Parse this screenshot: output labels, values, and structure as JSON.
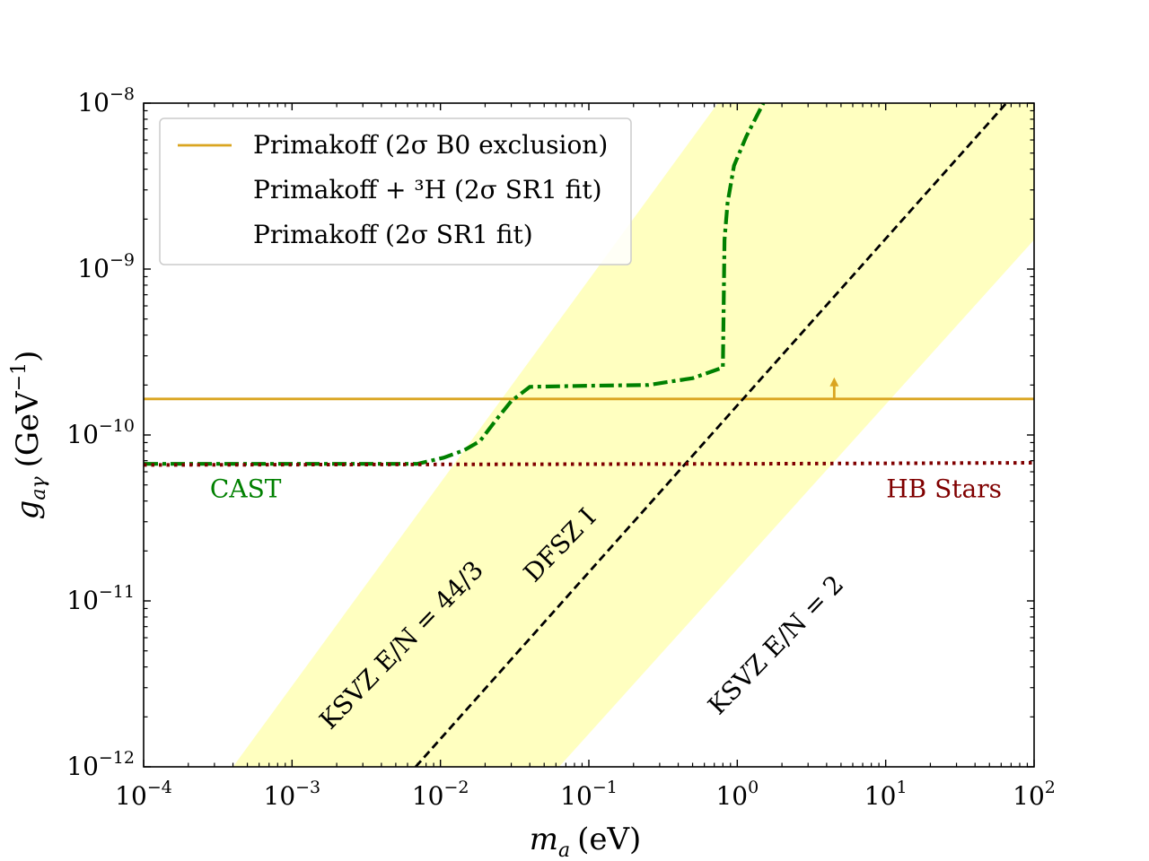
{
  "chart_data": {
    "type": "line",
    "title": "",
    "xlabel": {
      "var": "m",
      "sub": "a",
      "unit": "(eV)"
    },
    "ylabel": {
      "var": "g",
      "sub": "aγ",
      "unit_pre": "(GeV",
      "unit_exp": "−1",
      "unit_post": ")"
    },
    "xscale": "log",
    "yscale": "log",
    "xlim": [
      0.0001,
      100
    ],
    "ylim": [
      1e-12,
      1e-08
    ],
    "x_ticks": [
      {
        "value": 0.0001,
        "base": "10",
        "exp": "−4"
      },
      {
        "value": 0.001,
        "base": "10",
        "exp": "−3"
      },
      {
        "value": 0.01,
        "base": "10",
        "exp": "−2"
      },
      {
        "value": 0.1,
        "base": "10",
        "exp": "−1"
      },
      {
        "value": 1,
        "base": "10",
        "exp": "0"
      },
      {
        "value": 10,
        "base": "10",
        "exp": "1"
      },
      {
        "value": 100,
        "base": "10",
        "exp": "2"
      }
    ],
    "y_ticks": [
      {
        "value": 1e-12,
        "base": "10",
        "exp": "−12"
      },
      {
        "value": 1e-11,
        "base": "10",
        "exp": "−11"
      },
      {
        "value": 1e-10,
        "base": "10",
        "exp": "−10"
      },
      {
        "value": 1e-09,
        "base": "10",
        "exp": "−9"
      },
      {
        "value": 1e-08,
        "base": "10",
        "exp": "−8"
      }
    ],
    "grid": false,
    "legend_placement": "top-left",
    "legend": [
      {
        "label": "Primakoff (2σ B0 exclusion)",
        "color": "#DAA520",
        "style": "solid"
      },
      {
        "label": "Primakoff + ³H (2σ SR1 fit)",
        "color": "",
        "style": "none"
      },
      {
        "label": "Primakoff (2σ SR1 fit)",
        "color": "",
        "style": "none"
      }
    ],
    "bands": [
      {
        "name": "KSVZ E/N = 44/3",
        "color": "#FFFFC0",
        "lower_name": "KSVZ E/N = 2",
        "lower": [
          [
            0.0004,
            1e-12
          ],
          [
            100,
            1.5e-09
          ]
        ],
        "upper": [
          [
            0.0004,
            1e-12
          ],
          [
            0.74,
            1e-08
          ]
        ],
        "upper_edge": [
          [
            0.0004,
            1e-12
          ],
          [
            0.74,
            1e-08
          ]
        ],
        "lower_edge": [
          [
            0.063,
            1e-12
          ],
          [
            100,
            1.5e-09
          ]
        ]
      }
    ],
    "series": [
      {
        "key": "primakoff_b0",
        "color": "#DAA520",
        "style": "solid",
        "x": [
          0.0001,
          100
        ],
        "y": [
          1.65e-10,
          1.65e-10
        ]
      },
      {
        "key": "dfsz",
        "color": "#000000",
        "style": "dashed",
        "x": [
          0.0068,
          65
        ],
        "y": [
          1e-12,
          1e-08
        ]
      },
      {
        "key": "cast",
        "color": "#008000",
        "style": "dashdot",
        "x": [
          0.0001,
          0.001,
          0.007,
          0.0105,
          0.0145,
          0.0185,
          0.024,
          0.03,
          0.04,
          0.1,
          0.25,
          0.5,
          0.8,
          0.82,
          0.86,
          0.95,
          1.15,
          1.5
        ],
        "y": [
          6.7e-11,
          6.7e-11,
          6.7e-11,
          7.3e-11,
          8.1e-11,
          9.2e-11,
          1.25e-10,
          1.6e-10,
          1.95e-10,
          1.98e-10,
          2e-10,
          2.2e-10,
          2.55e-10,
          1.5e-09,
          2.5e-09,
          4.2e-09,
          6.3e-09,
          1e-08
        ]
      },
      {
        "key": "hb_stars",
        "color": "#800000",
        "style": "dotted",
        "x": [
          0.0001,
          0.01,
          1,
          100
        ],
        "y": [
          6.6e-11,
          6.65e-11,
          6.7e-11,
          6.8e-11
        ]
      }
    ],
    "annotations": [
      {
        "key": "cast_label",
        "text": "CAST",
        "color": "#008000",
        "x": 0.00028,
        "y": 4.2e-11,
        "rotate": 0
      },
      {
        "key": "hb_label",
        "text": "HB Stars",
        "color": "#800000",
        "x": 0.5,
        "y": 4.2e-11,
        "rotate": 0
      },
      {
        "key": "ksvz443_label",
        "text": "KSVZ E/N = 44/3",
        "color": "#000000",
        "x": 0.006,
        "y": 5e-12,
        "rotate": -46
      },
      {
        "key": "dfsz_label",
        "text": "DFSZ I",
        "color": "#000000",
        "x": 0.07,
        "y": 2e-11,
        "rotate": -46
      },
      {
        "key": "ksvz2_label",
        "text": "KSVZ E/N = 2",
        "color": "#000000",
        "x": 2.0,
        "y": 5e-12,
        "rotate": -46
      }
    ],
    "arrow": {
      "color": "#DAA520",
      "x": 4.5,
      "y_from": 1.65e-10,
      "direction": "up"
    }
  }
}
